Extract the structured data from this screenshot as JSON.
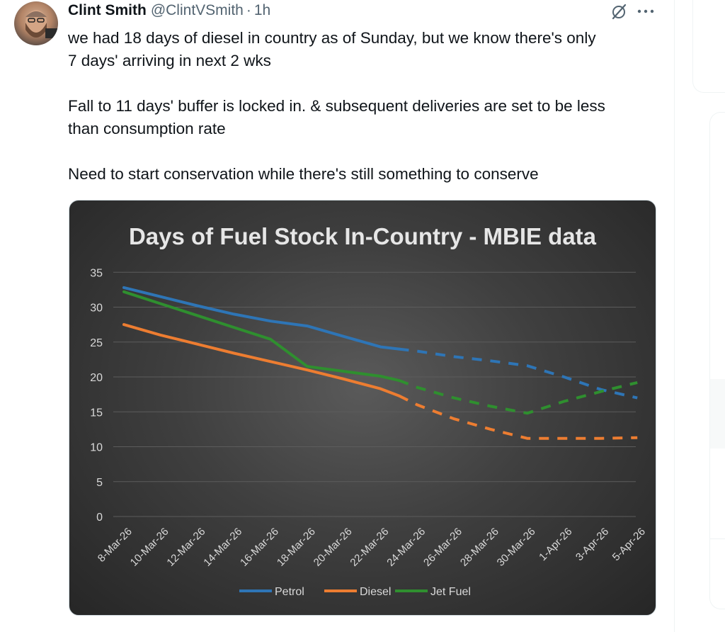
{
  "tweet": {
    "author_name": "Clint Smith",
    "handle": "@ClintVSmith",
    "separator": "·",
    "time": "1h",
    "text": [
      "we had 18 days of diesel in country as of Sunday, but we know there's only\n7 days' arriving in next 2 wks",
      "Fall to 11 days' buffer is locked in. & subsequent deliveries are set to be less\nthan consumption rate",
      "Need to start conservation while there's still something to conserve"
    ],
    "icons": {
      "grok": "grok-slash-icon",
      "more": "more-icon"
    }
  },
  "chart_data": {
    "type": "line",
    "title": "Days of Fuel Stock In-Country - MBIE data",
    "x": [
      "8-Mar-26",
      "10-Mar-26",
      "12-Mar-26",
      "14-Mar-26",
      "16-Mar-26",
      "18-Mar-26",
      "20-Mar-26",
      "22-Mar-26",
      "24-Mar-26",
      "26-Mar-26",
      "28-Mar-26",
      "30-Mar-26",
      "1-Apr-26",
      "3-Apr-26",
      "5-Apr-26"
    ],
    "yticks": [
      "0",
      "5",
      "10",
      "15",
      "20",
      "25",
      "30",
      "35"
    ],
    "ylim": [
      0,
      35
    ],
    "grid": true,
    "legend_position": "bottom",
    "series": [
      {
        "name": "Petrol",
        "color": "#2e75b6",
        "actual": [
          [
            0,
            32.8
          ],
          [
            1,
            31.5
          ],
          [
            2,
            30.2
          ],
          [
            3,
            29
          ],
          [
            4,
            28
          ],
          [
            5,
            27.3
          ],
          [
            6,
            25.8
          ],
          [
            7,
            24.3
          ],
          [
            7.5,
            24
          ]
        ],
        "projected": [
          [
            7.5,
            24
          ],
          [
            8,
            23.7
          ],
          [
            9,
            22.9
          ],
          [
            10,
            22.3
          ],
          [
            11,
            21.6
          ],
          [
            12,
            20
          ],
          [
            13,
            18.2
          ],
          [
            14,
            17
          ]
        ]
      },
      {
        "name": "Diesel",
        "color": "#ed7d31",
        "actual": [
          [
            0,
            27.5
          ],
          [
            1,
            26
          ],
          [
            2,
            24.7
          ],
          [
            3,
            23.4
          ],
          [
            4,
            22.2
          ],
          [
            5,
            21
          ],
          [
            6,
            19.7
          ],
          [
            7,
            18.3
          ],
          [
            7.5,
            17.3
          ]
        ],
        "projected": [
          [
            7.5,
            17.3
          ],
          [
            8,
            16
          ],
          [
            9,
            14
          ],
          [
            10,
            12.5
          ],
          [
            11,
            11.2
          ],
          [
            12,
            11.2
          ],
          [
            13,
            11.2
          ],
          [
            14,
            11.3
          ]
        ]
      },
      {
        "name": "Jet Fuel",
        "color": "#2f8f2f",
        "actual": [
          [
            0,
            32.2
          ],
          [
            1,
            30.5
          ],
          [
            2,
            28.8
          ],
          [
            3,
            27.1
          ],
          [
            4,
            25.4
          ],
          [
            5,
            21.5
          ],
          [
            6,
            20.8
          ],
          [
            7,
            20.1
          ],
          [
            7.5,
            19.5
          ]
        ],
        "projected": [
          [
            7.5,
            19.5
          ],
          [
            8,
            18.5
          ],
          [
            9,
            17
          ],
          [
            10,
            15.8
          ],
          [
            11,
            14.8
          ],
          [
            12,
            16.5
          ],
          [
            13,
            17.9
          ],
          [
            14,
            19.2
          ]
        ]
      }
    ]
  }
}
